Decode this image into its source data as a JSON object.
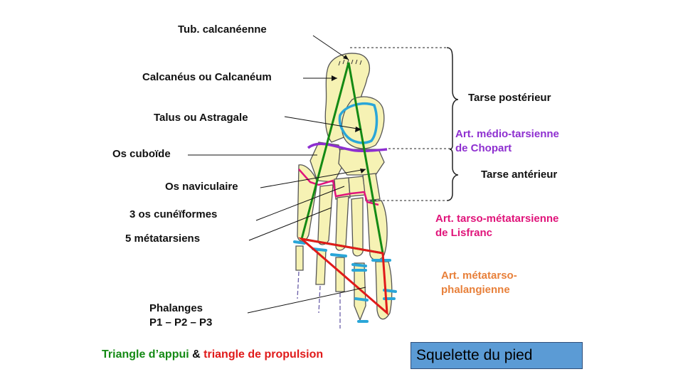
{
  "labels": {
    "tub_calcaneenne": "Tub. calcanéenne",
    "calcaneus": "Calcanéus ou Calcanéum",
    "talus": "Talus ou Astragale",
    "cuboide": "Os cuboïde",
    "naviculaire": "Os naviculaire",
    "cuneiformes": "3 os cunéïformes",
    "metatarsiens": "5 métatarsiens",
    "phalanges_line1": "Phalanges",
    "phalanges_line2": "P1 – P2 – P3"
  },
  "right_labels": {
    "tarse_posterieur": "Tarse postérieur",
    "chopart_line1": "Art. médio-tarsienne",
    "chopart_line2": "de Chopart",
    "tarse_anterieur": "Tarse antérieur",
    "lisfranc_line1": "Art. tarso-métatarsienne",
    "lisfranc_line2": "de Lisfranc",
    "mtp_line1": "Art. métatarso-",
    "mtp_line2": "phalangienne"
  },
  "legend": {
    "part1": "Triangle d’appui",
    "amp": " & ",
    "part2": "triangle de propulsion"
  },
  "title": "Squelette du pied",
  "colors": {
    "bone": "#f6f2b4",
    "bone_outline": "#555555",
    "talus_cartilage": "#2aa6d8",
    "chopart_line": "#8e2fd0",
    "lisfranc_line": "#e0147a",
    "support_triangle": "#148a14",
    "propulsion_triangle": "#e01a1a",
    "title_box": "#5b9bd5"
  }
}
